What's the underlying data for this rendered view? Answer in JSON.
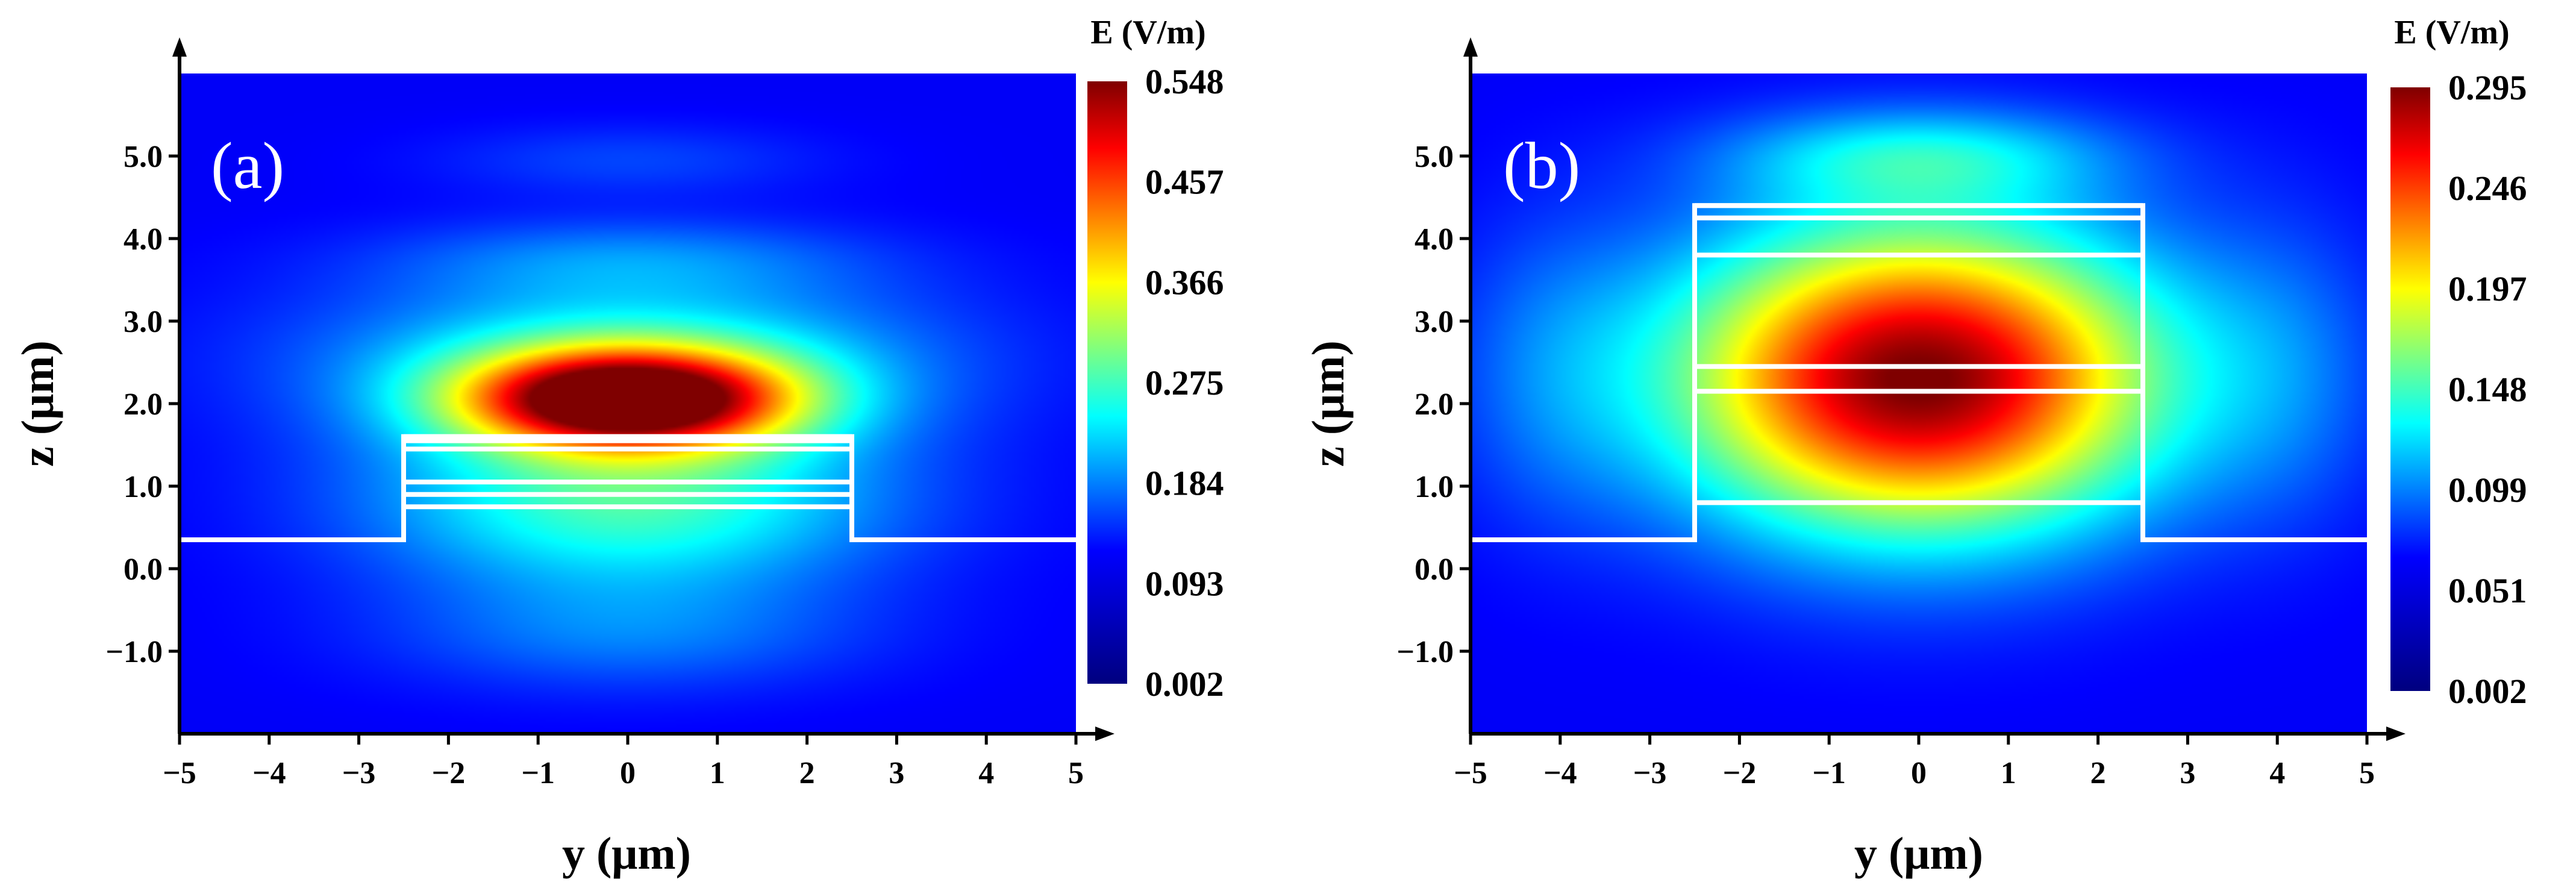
{
  "chart_data": [
    {
      "type": "heatmap",
      "panel_label": "(a)",
      "xlabel": "y (μm)",
      "ylabel": "z (μm)",
      "xlim": [
        -5,
        5
      ],
      "ylim": [
        -2,
        6
      ],
      "x_ticks": [
        -5,
        -4,
        -3,
        -2,
        -1,
        0,
        1,
        2,
        3,
        4,
        5
      ],
      "x_tick_labels": [
        "−5",
        "−4",
        "−3",
        "−2",
        "−1",
        "0",
        "1",
        "2",
        "3",
        "4",
        "5"
      ],
      "y_ticks": [
        -1.0,
        0.0,
        1.0,
        2.0,
        3.0,
        4.0,
        5.0
      ],
      "y_tick_labels": [
        "−1.0",
        "0.0",
        "1.0",
        "2.0",
        "3.0",
        "4.0",
        "5.0"
      ],
      "colorbar": {
        "title": "E (V/m)",
        "min": 0.002,
        "max": 0.548,
        "tick_labels": [
          "0.548",
          "0.457",
          "0.366",
          "0.275",
          "0.184",
          "0.093",
          "0.002"
        ],
        "colormap": [
          "#00007f",
          "#0000ff",
          "#007fff",
          "#00ffff",
          "#7fff7f",
          "#ffff00",
          "#ff7f00",
          "#ff0000",
          "#7f0000"
        ]
      },
      "structure": {
        "substrate_z": 0.35,
        "ridge_y": [
          -2.5,
          2.5
        ],
        "layer_z": [
          0.75,
          0.9,
          1.05,
          1.45,
          1.55,
          1.6
        ]
      },
      "field_lobes": [
        {
          "y": 0.0,
          "z": 2.05,
          "sy": 1.3,
          "sz": 0.42,
          "amp": 0.548
        },
        {
          "y": 0.0,
          "z": 0.8,
          "sy": 2.0,
          "sz": 0.75,
          "amp": 0.2
        },
        {
          "y": 0.0,
          "z": 2.55,
          "sy": 2.4,
          "sz": 0.7,
          "amp": 0.16
        },
        {
          "y": 0.0,
          "z": 3.75,
          "sy": 1.9,
          "sz": 0.35,
          "amp": 0.07
        },
        {
          "y": 0.0,
          "z": 4.95,
          "sy": 1.5,
          "sz": 0.3,
          "amp": 0.045
        },
        {
          "y": 0.0,
          "z": -0.8,
          "sy": 1.9,
          "sz": 0.5,
          "amp": 0.07
        }
      ]
    },
    {
      "type": "heatmap",
      "panel_label": "(b)",
      "xlabel": "y (μm)",
      "ylabel": "z (μm)",
      "xlim": [
        -5,
        5
      ],
      "ylim": [
        -2,
        6
      ],
      "x_ticks": [
        -5,
        -4,
        -3,
        -2,
        -1,
        0,
        1,
        2,
        3,
        4,
        5
      ],
      "x_tick_labels": [
        "−5",
        "−4",
        "−3",
        "−2",
        "−1",
        "0",
        "1",
        "2",
        "3",
        "4",
        "5"
      ],
      "y_ticks": [
        -1.0,
        0.0,
        1.0,
        2.0,
        3.0,
        4.0,
        5.0
      ],
      "y_tick_labels": [
        "−1.0",
        "0.0",
        "1.0",
        "2.0",
        "3.0",
        "4.0",
        "5.0"
      ],
      "colorbar": {
        "title": "E (V/m)",
        "min": 0.002,
        "max": 0.295,
        "tick_labels": [
          "0.295",
          "0.246",
          "0.197",
          "0.148",
          "0.099",
          "0.051",
          "0.002"
        ],
        "colormap": [
          "#00007f",
          "#0000ff",
          "#007fff",
          "#00ffff",
          "#7fff7f",
          "#ffff00",
          "#ff7f00",
          "#ff0000",
          "#7f0000"
        ]
      },
      "structure": {
        "substrate_z": 0.35,
        "ridge_y": [
          -2.5,
          2.5
        ],
        "layer_z": [
          0.8,
          2.15,
          2.45,
          3.8,
          4.25,
          4.4
        ]
      },
      "field_lobes": [
        {
          "y": 0.0,
          "z": 2.3,
          "sy": 1.9,
          "sz": 1.3,
          "amp": 0.295
        },
        {
          "y": 0.0,
          "z": 5.0,
          "sy": 1.5,
          "sz": 0.4,
          "amp": 0.07
        },
        {
          "y": -4.1,
          "z": 2.4,
          "sy": 0.8,
          "sz": 1.3,
          "amp": 0.03
        },
        {
          "y": 4.1,
          "z": 2.4,
          "sy": 0.8,
          "sz": 1.3,
          "amp": 0.03
        }
      ]
    }
  ]
}
